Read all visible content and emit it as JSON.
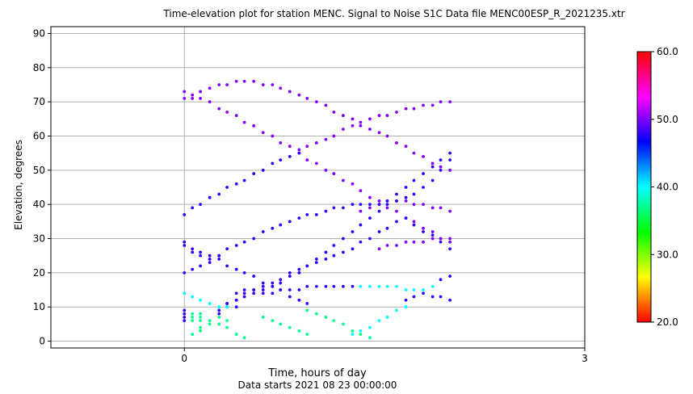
{
  "chart_data": {
    "type": "scatter",
    "title": "Time-elevation plot for station MENC.    Signal to Noise S1C    Data file MENC00ESP_R_2021235.xtr",
    "xlabel": "Time, hours of day",
    "xlabel2": "Data starts 2021 08 23 00:00:00",
    "ylabel": "Elevation, degrees",
    "xlim": [
      -1,
      3
    ],
    "ylim": [
      -2,
      92
    ],
    "x_ticks": [
      0,
      3
    ],
    "x_tick_labels": [
      "0",
      "3"
    ],
    "y_ticks": [
      0,
      10,
      20,
      30,
      40,
      50,
      60,
      70,
      80,
      90
    ],
    "y_tick_labels": [
      "0",
      "10",
      "20",
      "30",
      "40",
      "50",
      "60",
      "70",
      "80",
      "90"
    ],
    "grid": "horizontal",
    "vline_x": 0,
    "colorbar": {
      "min": 20,
      "max": 60,
      "ticks": [
        20,
        30,
        40,
        50,
        60
      ],
      "tick_labels": [
        "20.0",
        "30.0",
        "40.0",
        "50.0",
        "60.0"
      ],
      "colormap": "hsv"
    },
    "series": [
      {
        "color_value": 50,
        "points": [
          [
            0,
            73
          ],
          [
            0.06,
            72
          ],
          [
            0.12,
            73
          ],
          [
            0.19,
            74
          ],
          [
            0.26,
            75
          ],
          [
            0.32,
            75
          ],
          [
            0.39,
            76
          ],
          [
            0.45,
            76
          ],
          [
            0.52,
            76
          ],
          [
            0.59,
            75
          ],
          [
            0.66,
            75
          ],
          [
            0.72,
            74
          ],
          [
            0.79,
            73
          ],
          [
            0.86,
            72
          ],
          [
            0.92,
            71
          ],
          [
            0.99,
            70
          ],
          [
            1.06,
            69
          ],
          [
            1.12,
            67
          ],
          [
            1.19,
            66
          ],
          [
            1.26,
            65
          ],
          [
            1.32,
            64
          ],
          [
            1.39,
            65
          ],
          [
            1.46,
            66
          ],
          [
            1.52,
            66
          ],
          [
            1.59,
            67
          ],
          [
            1.66,
            68
          ],
          [
            1.72,
            68
          ],
          [
            1.79,
            69
          ],
          [
            1.86,
            69
          ],
          [
            1.92,
            70
          ],
          [
            1.99,
            70
          ],
          [
            0,
            71
          ],
          [
            0.06,
            71
          ],
          [
            0.12,
            71
          ],
          [
            0.19,
            70
          ],
          [
            0.26,
            68
          ],
          [
            0.32,
            67
          ],
          [
            0.39,
            66
          ],
          [
            0.45,
            64
          ],
          [
            0.52,
            63
          ],
          [
            0.59,
            61
          ],
          [
            0.66,
            60
          ],
          [
            0.72,
            58
          ],
          [
            0.79,
            57
          ],
          [
            0.86,
            55
          ],
          [
            0.92,
            53
          ],
          [
            0.99,
            52
          ],
          [
            1.06,
            50
          ],
          [
            1.12,
            49
          ],
          [
            1.19,
            47
          ],
          [
            1.26,
            46
          ],
          [
            1.32,
            44
          ],
          [
            1.39,
            42
          ],
          [
            1.46,
            41
          ],
          [
            1.52,
            39
          ],
          [
            1.59,
            38
          ],
          [
            1.66,
            36
          ],
          [
            1.72,
            35
          ],
          [
            1.79,
            33
          ],
          [
            1.86,
            32
          ],
          [
            1.92,
            30
          ],
          [
            1.99,
            29
          ],
          [
            0.86,
            56
          ],
          [
            0.92,
            57
          ],
          [
            0.99,
            58
          ],
          [
            1.06,
            59
          ],
          [
            1.12,
            60
          ],
          [
            1.19,
            62
          ],
          [
            1.26,
            63
          ],
          [
            1.32,
            63
          ],
          [
            1.39,
            62
          ],
          [
            1.46,
            61
          ],
          [
            1.52,
            60
          ],
          [
            1.59,
            58
          ],
          [
            1.66,
            57
          ],
          [
            1.72,
            55
          ],
          [
            1.79,
            54
          ],
          [
            1.86,
            52
          ],
          [
            1.92,
            51
          ],
          [
            1.99,
            50
          ],
          [
            1.32,
            38
          ],
          [
            1.39,
            39
          ],
          [
            1.46,
            40
          ],
          [
            1.52,
            41
          ],
          [
            1.59,
            41
          ],
          [
            1.66,
            41
          ],
          [
            1.72,
            40
          ],
          [
            1.79,
            40
          ],
          [
            1.86,
            39
          ],
          [
            1.92,
            39
          ],
          [
            1.99,
            38
          ],
          [
            1.46,
            27
          ],
          [
            1.52,
            28
          ],
          [
            1.59,
            28
          ],
          [
            1.66,
            29
          ],
          [
            1.72,
            29
          ],
          [
            1.79,
            29
          ],
          [
            1.86,
            30
          ],
          [
            1.92,
            30
          ],
          [
            1.99,
            30
          ]
        ]
      },
      {
        "color_value": 48,
        "points": [
          [
            0,
            37
          ],
          [
            0.06,
            39
          ],
          [
            0.12,
            40
          ],
          [
            0.19,
            42
          ],
          [
            0.26,
            43
          ],
          [
            0.32,
            45
          ],
          [
            0.39,
            46
          ],
          [
            0.45,
            47
          ],
          [
            0.52,
            49
          ],
          [
            0.59,
            50
          ],
          [
            0.66,
            52
          ],
          [
            0.72,
            53
          ],
          [
            0.79,
            54
          ],
          [
            0.86,
            55
          ],
          [
            0,
            29
          ],
          [
            0.06,
            27
          ],
          [
            0.12,
            26
          ],
          [
            0.19,
            24
          ],
          [
            0.26,
            24
          ],
          [
            0.32,
            22
          ],
          [
            0.39,
            21
          ],
          [
            0.45,
            20
          ],
          [
            0.52,
            19
          ],
          [
            0.59,
            17
          ],
          [
            0.66,
            16
          ],
          [
            0.72,
            15
          ],
          [
            0.79,
            13
          ],
          [
            0.86,
            12
          ],
          [
            0.92,
            11
          ],
          [
            0,
            28
          ],
          [
            0.06,
            26
          ],
          [
            0.12,
            25
          ],
          [
            0.19,
            25
          ],
          [
            0.26,
            25
          ],
          [
            0,
            20
          ],
          [
            0.06,
            21
          ],
          [
            0.12,
            22
          ],
          [
            0.19,
            23
          ],
          [
            0.26,
            25
          ],
          [
            0.32,
            27
          ],
          [
            0.39,
            28
          ],
          [
            0.45,
            29
          ],
          [
            0.52,
            30
          ],
          [
            0.59,
            32
          ],
          [
            0.66,
            33
          ],
          [
            0.72,
            34
          ],
          [
            0.79,
            35
          ],
          [
            0.86,
            36
          ],
          [
            0.92,
            37
          ],
          [
            0.99,
            37
          ],
          [
            1.06,
            38
          ],
          [
            1.12,
            39
          ],
          [
            1.19,
            39
          ],
          [
            1.26,
            40
          ],
          [
            1.32,
            40
          ],
          [
            1.39,
            40
          ],
          [
            1.46,
            40
          ],
          [
            1.52,
            41
          ],
          [
            1.59,
            41
          ],
          [
            1.66,
            42
          ],
          [
            1.72,
            43
          ],
          [
            1.79,
            45
          ],
          [
            1.86,
            47
          ],
          [
            1.92,
            50
          ],
          [
            1.99,
            53
          ],
          [
            0.26,
            8
          ],
          [
            0.32,
            10
          ],
          [
            0.39,
            12
          ],
          [
            0.45,
            13
          ],
          [
            0.52,
            14
          ],
          [
            0.59,
            15
          ],
          [
            0.66,
            16
          ],
          [
            0.72,
            17
          ],
          [
            0.79,
            19
          ],
          [
            0.86,
            20
          ],
          [
            0.92,
            22
          ],
          [
            0.99,
            24
          ],
          [
            1.06,
            26
          ],
          [
            1.12,
            28
          ],
          [
            1.19,
            30
          ],
          [
            1.26,
            32
          ],
          [
            1.32,
            34
          ],
          [
            1.39,
            36
          ],
          [
            1.46,
            38
          ],
          [
            1.52,
            40
          ],
          [
            1.59,
            43
          ],
          [
            1.66,
            45
          ],
          [
            1.72,
            47
          ],
          [
            1.79,
            49
          ],
          [
            1.86,
            51
          ],
          [
            1.92,
            53
          ],
          [
            1.99,
            55
          ],
          [
            0.32,
            11
          ],
          [
            0.39,
            12
          ],
          [
            0.45,
            14
          ],
          [
            0.52,
            15
          ],
          [
            0.59,
            16
          ],
          [
            0.66,
            17
          ],
          [
            0.72,
            18
          ],
          [
            0.79,
            20
          ],
          [
            0.86,
            21
          ],
          [
            0.92,
            22
          ],
          [
            0.99,
            23
          ],
          [
            1.06,
            24
          ],
          [
            1.12,
            25
          ],
          [
            1.19,
            26
          ],
          [
            1.26,
            27
          ],
          [
            1.32,
            29
          ],
          [
            1.39,
            30
          ],
          [
            1.46,
            32
          ],
          [
            1.52,
            33
          ],
          [
            1.59,
            35
          ],
          [
            1.66,
            36
          ],
          [
            1.72,
            34
          ],
          [
            1.79,
            32
          ],
          [
            1.86,
            31
          ],
          [
            1.92,
            29
          ],
          [
            1.99,
            27
          ],
          [
            0.92,
            16
          ],
          [
            0.99,
            16
          ],
          [
            1.06,
            16
          ],
          [
            1.12,
            16
          ],
          [
            1.19,
            16
          ],
          [
            1.26,
            16
          ],
          [
            0.39,
            14
          ],
          [
            0.45,
            15
          ],
          [
            0.52,
            15
          ],
          [
            0.59,
            14
          ],
          [
            0.66,
            14
          ],
          [
            0.72,
            15
          ],
          [
            0.79,
            15
          ],
          [
            0.86,
            15
          ],
          [
            0.26,
            9
          ],
          [
            0.32,
            11
          ],
          [
            0.39,
            10
          ],
          [
            1.66,
            12
          ],
          [
            1.72,
            13
          ],
          [
            1.79,
            14
          ],
          [
            1.86,
            13
          ],
          [
            1.92,
            13
          ],
          [
            1.99,
            12
          ],
          [
            1.92,
            18
          ],
          [
            1.99,
            19
          ],
          [
            0,
            9
          ],
          [
            0,
            8
          ],
          [
            0,
            7
          ],
          [
            0,
            6
          ]
        ]
      },
      {
        "color_value": 40,
        "points": [
          [
            0,
            14
          ],
          [
            0.06,
            13
          ],
          [
            0.12,
            12
          ],
          [
            0.19,
            11
          ],
          [
            0.26,
            10
          ],
          [
            0.32,
            10
          ],
          [
            1.32,
            16
          ],
          [
            1.39,
            16
          ],
          [
            1.46,
            16
          ],
          [
            1.52,
            16
          ],
          [
            1.59,
            16
          ],
          [
            1.66,
            15
          ],
          [
            1.72,
            15
          ],
          [
            1.79,
            15
          ],
          [
            1.86,
            16
          ],
          [
            1.26,
            2
          ],
          [
            1.32,
            3
          ],
          [
            1.39,
            4
          ],
          [
            1.46,
            6
          ],
          [
            1.52,
            7
          ],
          [
            1.59,
            9
          ],
          [
            1.66,
            10
          ]
        ]
      },
      {
        "color_value": 37,
        "points": [
          [
            0.06,
            8
          ],
          [
            0.12,
            8
          ],
          [
            0.06,
            7
          ],
          [
            0.12,
            7
          ],
          [
            0.06,
            6
          ],
          [
            0.12,
            6
          ],
          [
            0.06,
            2
          ],
          [
            0.12,
            3
          ],
          [
            0.12,
            4
          ],
          [
            0.19,
            5
          ],
          [
            0.19,
            6
          ],
          [
            0.26,
            5
          ],
          [
            0.26,
            7
          ],
          [
            0.32,
            6
          ],
          [
            0.32,
            4
          ],
          [
            0.39,
            2
          ],
          [
            0.45,
            1
          ],
          [
            0.59,
            7
          ],
          [
            0.66,
            6
          ],
          [
            0.72,
            5
          ],
          [
            0.79,
            4
          ],
          [
            0.86,
            3
          ],
          [
            0.92,
            2
          ],
          [
            0.92,
            9
          ],
          [
            0.99,
            8
          ],
          [
            1.06,
            7
          ],
          [
            1.12,
            6
          ],
          [
            1.19,
            5
          ],
          [
            1.26,
            3
          ],
          [
            1.32,
            2
          ],
          [
            1.39,
            1
          ]
        ]
      }
    ]
  }
}
